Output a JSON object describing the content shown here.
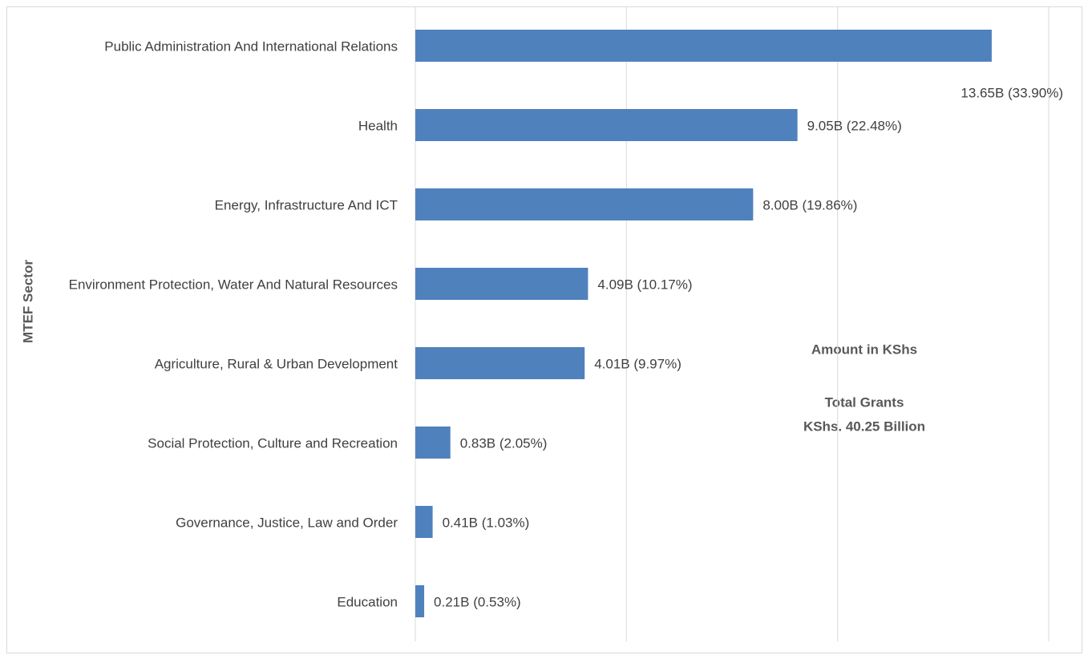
{
  "chart_data": {
    "type": "bar",
    "orientation": "horizontal",
    "y_axis_label": "MTEF Sector",
    "annotations": [
      "Amount in KShs",
      "Total Grants",
      "KShs. 40.25 Billion"
    ],
    "categories": [
      "Public Administration And International Relations",
      "Health",
      "Energy, Infrastructure And ICT",
      "Environment Protection, Water And Natural Resources",
      "Agriculture, Rural & Urban Development",
      "Social Protection, Culture and Recreation",
      "Governance, Justice, Law and Order",
      "Education"
    ],
    "values": [
      13.65,
      9.05,
      8.0,
      4.09,
      4.01,
      0.83,
      0.41,
      0.21
    ],
    "value_labels": [
      "13.65B (33.90%)",
      "9.05B (22.48%)",
      "8.00B (19.86%)",
      "4.09B (10.17%)",
      "4.01B (9.97%)",
      "0.83B (2.05%)",
      "0.41B (1.03%)",
      "0.21B (0.53%)"
    ],
    "color": "#4f81bd",
    "xlim": [
      0,
      15
    ],
    "xticks": [
      0,
      5,
      10,
      15
    ],
    "grid": true
  }
}
